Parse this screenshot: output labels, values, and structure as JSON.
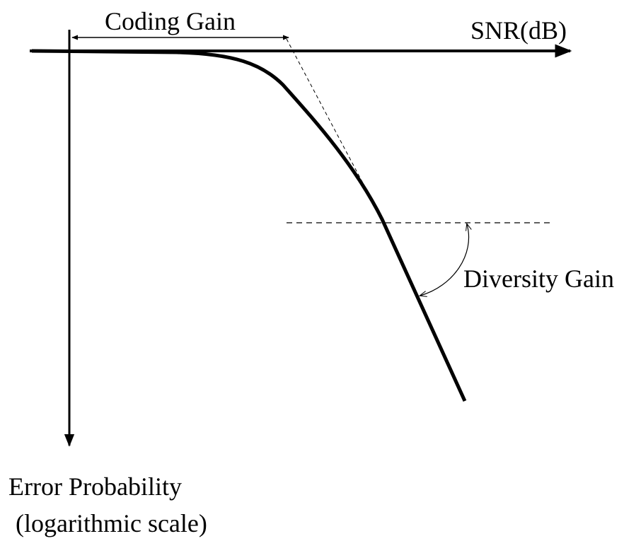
{
  "labels": {
    "coding_gain": "Coding Gain",
    "x_axis": "SNR(dB)",
    "diversity_gain": "Diversity Gain",
    "y_axis_line1": "Error Probability",
    "y_axis_line2": "(logarithmic scale)"
  }
}
